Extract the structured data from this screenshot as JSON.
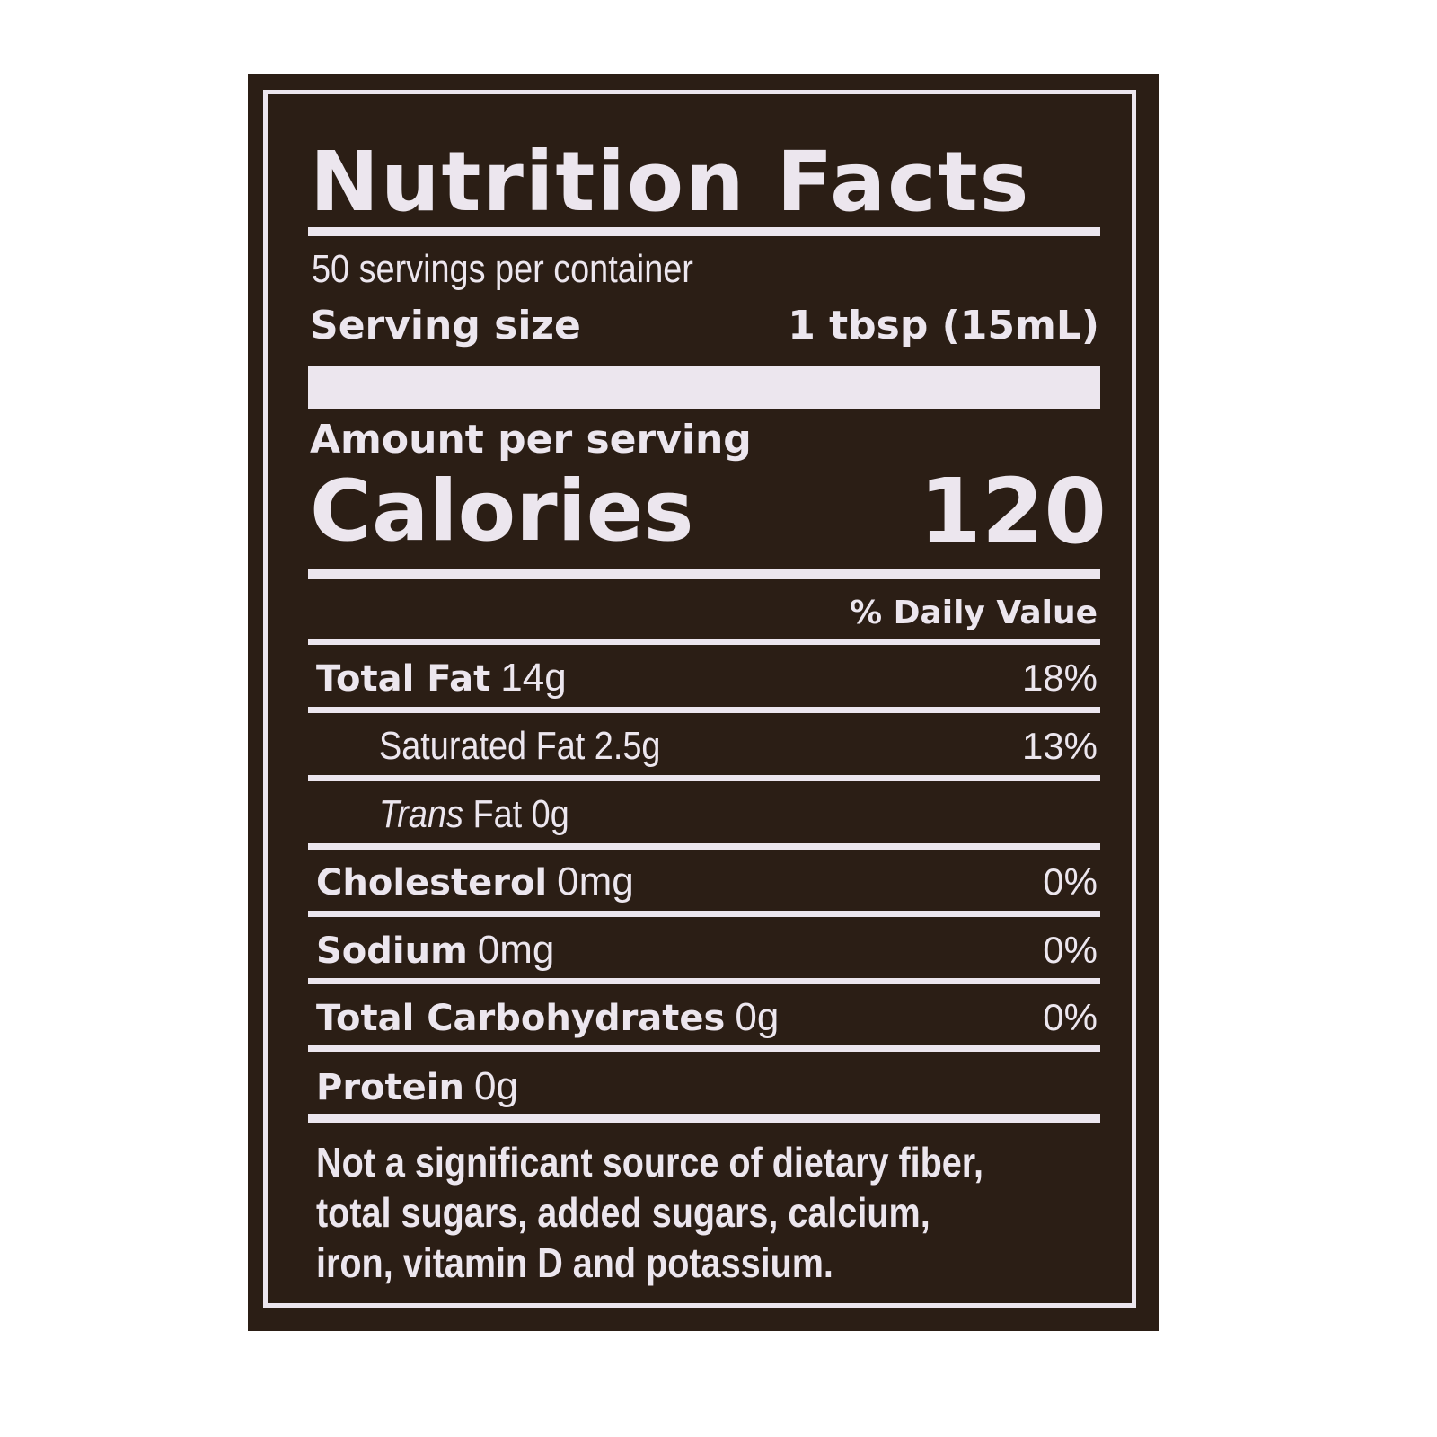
{
  "label": {
    "title": "Nutrition Facts",
    "servings_per_container": "50 servings per container",
    "serving_size_label": "Serving size",
    "serving_size_value": "1 tbsp (15mL)",
    "amount_per_serving": "Amount per serving",
    "calories_label": "Calories",
    "calories_value": "120",
    "daily_value_header": "% Daily Value",
    "nutrients": [
      {
        "name": "Total Fat",
        "amount": "14g",
        "dv": "18%"
      },
      {
        "name": "Saturated Fat",
        "amount": "2.5g",
        "dv": "13%"
      },
      {
        "name_italic": "Trans",
        "name": "Fat",
        "amount": "0g"
      },
      {
        "name": "Cholesterol",
        "amount": "0mg",
        "dv": "0%"
      },
      {
        "name": "Sodium",
        "amount": "0mg",
        "dv": "0%"
      },
      {
        "name": "Total Carbohydrates",
        "amount": "0g",
        "dv": "0%"
      },
      {
        "name": "Protein",
        "amount": "0g"
      }
    ],
    "footnote": [
      "Not a significant source of dietary fiber,",
      "total sugars, added sugars, calcium,",
      "iron, vitamin D and potassium."
    ]
  },
  "colors": {
    "background": "#2b1e15",
    "text": "#ece6ee"
  }
}
